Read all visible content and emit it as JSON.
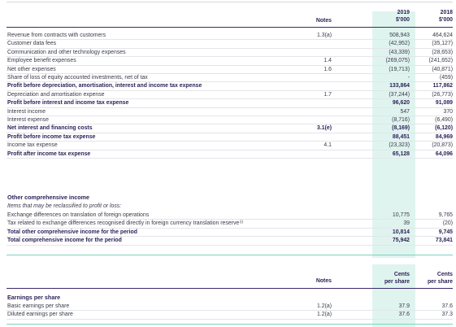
{
  "header": {
    "notes": "Notes",
    "year_2019": "2019",
    "unit_2019": "$'000",
    "year_2018": "2018",
    "unit_2018": "$'000"
  },
  "rows": [
    {
      "label": "Revenue from contracts with customers",
      "note": "1.3(a)",
      "v2019": "508,943",
      "v2018": "464,624",
      "style": ""
    },
    {
      "label": "Customer data fees",
      "note": "",
      "v2019": "(42,952)",
      "v2018": "(35,127)",
      "style": ""
    },
    {
      "label": "Communication and other technology expenses",
      "note": "",
      "v2019": "(43,339)",
      "v2018": "(28,653)",
      "style": ""
    },
    {
      "label": "Employee benefit expenses",
      "note": "1.4",
      "v2019": "(269,075)",
      "v2018": "(241,652)",
      "style": ""
    },
    {
      "label": "Net other expenses",
      "note": "1.6",
      "v2019": "(19,713)",
      "v2018": "(40,871)",
      "style": ""
    },
    {
      "label": "Share of loss of equity accounted investments, net of tax",
      "note": "",
      "v2019": "-",
      "v2018": "(459)",
      "style": ""
    },
    {
      "label": "Profit before depreciation, amortisation, interest and income tax expense",
      "note": "",
      "v2019": "133,864",
      "v2018": "117,862",
      "style": "bold"
    },
    {
      "label": "Depreciation and amortisation expense",
      "note": "1.7",
      "v2019": "(37,244)",
      "v2018": "(26,773)",
      "style": ""
    },
    {
      "label": "Profit before interest and income tax expense",
      "note": "",
      "v2019": "96,620",
      "v2018": "91,089",
      "style": "bold"
    },
    {
      "label": "Interest income",
      "note": "",
      "v2019": "547",
      "v2018": "370",
      "style": ""
    },
    {
      "label": "Interest expense",
      "note": "",
      "v2019": "(8,716)",
      "v2018": "(6,490)",
      "style": ""
    },
    {
      "label": "Net interest and financing costs",
      "note": "3.1(e)",
      "v2019": "(8,169)",
      "v2018": "(6,120)",
      "style": "bold"
    },
    {
      "label": "Profit before income tax expense",
      "note": "",
      "v2019": "88,451",
      "v2018": "84,969",
      "style": "bold"
    },
    {
      "label": "Income tax expense",
      "note": "4.1",
      "v2019": "(23,323)",
      "v2018": "(20,873)",
      "style": ""
    },
    {
      "label": "Profit after income tax expense",
      "note": "",
      "v2019": "65,128",
      "v2018": "64,096",
      "style": "bold"
    }
  ],
  "oci": {
    "title": "Other comprehensive income",
    "subtitle": "Items that may be reclassified to profit or loss:",
    "rows": [
      {
        "label": "Exchange differences on translation of foreign operations",
        "note": "",
        "v2019": "10,775",
        "v2018": "9,765",
        "style": ""
      },
      {
        "label": "Tax related to exchange differences recognised directly in foreign currency translation reserve",
        "sup": "(i)",
        "note": "",
        "v2019": "39",
        "v2018": "(20)",
        "style": ""
      },
      {
        "label": "Total other comprehensive income for the period",
        "note": "",
        "v2019": "10,814",
        "v2018": "9,745",
        "style": "bold"
      },
      {
        "label": "Total comprehensive income for the period",
        "note": "",
        "v2019": "75,942",
        "v2018": "73,841",
        "style": "bold"
      }
    ]
  },
  "eps_header": {
    "notes": "Notes",
    "cents_2019": "Cents",
    "per_share_2019": "per share",
    "cents_2018": "Cents",
    "per_share_2018": "per share"
  },
  "eps": {
    "title": "Earnings per share",
    "rows": [
      {
        "label": "Basic earnings per share",
        "note": "1.2(a)",
        "v2019": "37.9",
        "v2018": "37.6",
        "style": ""
      },
      {
        "label": "Diluted earnings per share",
        "note": "1.2(a)",
        "v2019": "37.6",
        "v2018": "37.3",
        "style": ""
      }
    ]
  },
  "colors": {
    "highlight": "#dff4ef",
    "heading": "#2b1f55",
    "rule_dark": "#3b2a6b",
    "rule_teal": "#7fd1bf"
  }
}
